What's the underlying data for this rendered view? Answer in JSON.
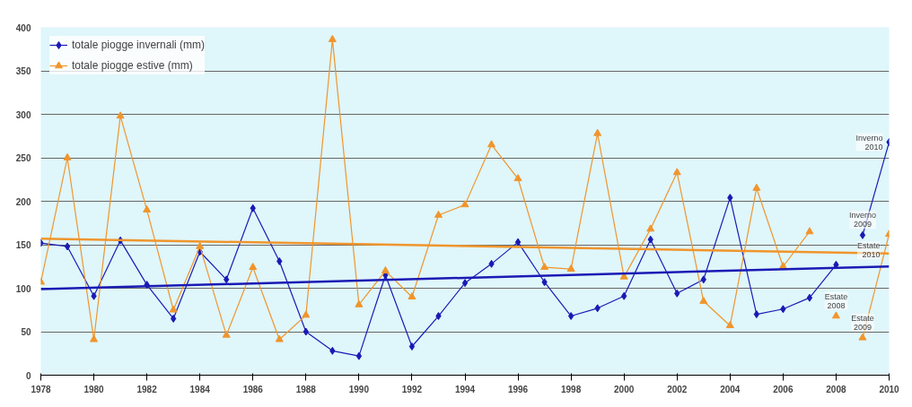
{
  "chart_data": {
    "type": "line",
    "xlim": [
      1978,
      2010
    ],
    "xticks": [
      1978,
      1980,
      1982,
      1984,
      1986,
      1988,
      1990,
      1992,
      1994,
      1996,
      1998,
      2000,
      2002,
      2004,
      2006,
      2008,
      2010
    ],
    "ylim": [
      0,
      400
    ],
    "yticks": [
      0,
      50,
      100,
      150,
      200,
      250,
      300,
      350,
      400
    ],
    "grid": "y",
    "legend": "top left",
    "series": [
      {
        "name": "totale piogge invernali (mm)",
        "color": "#1a1ab4",
        "marker": "diamond",
        "x": [
          1978,
          1979,
          1980,
          1981,
          1982,
          1983,
          1984,
          1985,
          1986,
          1987,
          1988,
          1989,
          1990,
          1991,
          1992,
          1993,
          1994,
          1995,
          1996,
          1997,
          1998,
          1999,
          2000,
          2001,
          2002,
          2003,
          2004,
          2005,
          2006,
          2007,
          2008
        ],
        "values": [
          152,
          148,
          91,
          155,
          104,
          65,
          142,
          110,
          192,
          131,
          50,
          28,
          22,
          115,
          33,
          68,
          106,
          128,
          153,
          107,
          68,
          77,
          91,
          156,
          94,
          110,
          204,
          70,
          76,
          89,
          127
        ]
      },
      {
        "name": "totale piogge estive (mm)",
        "color": "#f0952c",
        "marker": "triangle",
        "x": [
          1978,
          1979,
          1980,
          1981,
          1982,
          1983,
          1984,
          1985,
          1986,
          1987,
          1988,
          1989,
          1990,
          1991,
          1992,
          1993,
          1994,
          1995,
          1996,
          1997,
          1998,
          1999,
          2000,
          2001,
          2002,
          2003,
          2004,
          2005,
          2006,
          2007
        ],
        "values": [
          107,
          250,
          41,
          298,
          190,
          75,
          148,
          46,
          124,
          41,
          69,
          386,
          81,
          120,
          90,
          184,
          196,
          265,
          226,
          124,
          122,
          278,
          113,
          168,
          233,
          85,
          57,
          215,
          125,
          165
        ]
      },
      {
        "color": "#1a1ab4",
        "marker": "diamond",
        "x": [
          2009,
          2010
        ],
        "values": [
          161,
          268
        ]
      },
      {
        "color": "#f0952c",
        "marker": "triangle",
        "x": [
          2008
        ],
        "values": [
          68
        ]
      },
      {
        "color": "#f0952c",
        "marker": "triangle",
        "x": [
          2009,
          2010
        ],
        "values": [
          43,
          162
        ]
      },
      {
        "color": "#1a1ab4",
        "marker": "none",
        "x": [
          1978,
          2010
        ],
        "values": [
          99,
          125
        ]
      },
      {
        "color": "#f0952c",
        "marker": "none",
        "x": [
          1978,
          2010
        ],
        "values": [
          157,
          140
        ]
      }
    ],
    "annotations": [
      {
        "text": "Inverno\n2009",
        "x": 2009,
        "y": 161
      },
      {
        "text": "Inverno\n2010",
        "x": 2010,
        "y": 268
      },
      {
        "text": "Estate\n2008",
        "x": 2008,
        "y": 68
      },
      {
        "text": "Estate\n2009",
        "x": 2009,
        "y": 43
      },
      {
        "text": "Estate\n2010",
        "x": 2010,
        "y": 162
      }
    ]
  }
}
